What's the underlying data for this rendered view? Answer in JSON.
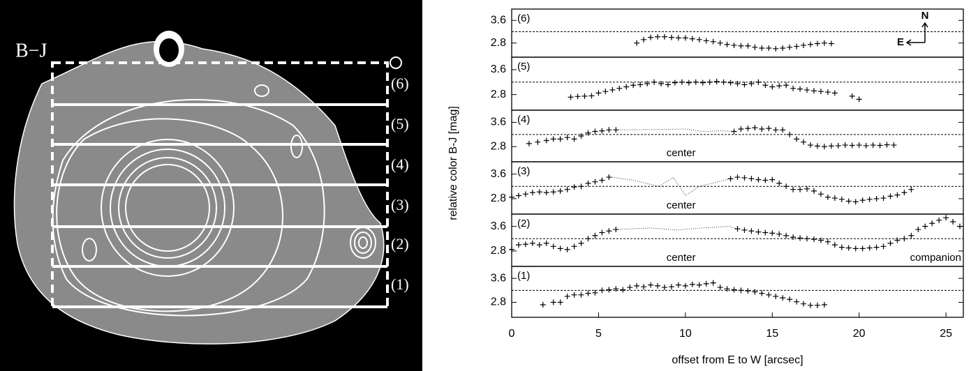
{
  "image": {
    "label": "B−J",
    "strips": [
      "(6)",
      "(5)",
      "(4)",
      "(3)",
      "(2)",
      "(1)"
    ]
  },
  "ylabel": "relative color B-J [mag]",
  "chart_data": [
    {
      "type": "scatter",
      "label": "(6)",
      "xlim": [
        0,
        26
      ],
      "ylim": [
        2.3,
        4.0
      ],
      "yticks": [
        3.6,
        2.8
      ],
      "reference_line": 3.2,
      "compass": [
        "N",
        "E"
      ],
      "x": [
        7.2,
        7.6,
        8,
        8.4,
        8.8,
        9.2,
        9.6,
        10,
        10.4,
        10.8,
        11.2,
        11.6,
        12,
        12.4,
        12.8,
        13.2,
        13.6,
        14,
        14.4,
        14.8,
        15.2,
        15.6,
        16,
        16.4,
        16.8,
        17.2,
        17.6,
        18,
        18.4
      ],
      "values": [
        2.8,
        2.92,
        3.0,
        3.02,
        3.02,
        3.0,
        2.98,
        2.98,
        2.95,
        2.92,
        2.88,
        2.85,
        2.8,
        2.75,
        2.72,
        2.7,
        2.7,
        2.65,
        2.62,
        2.62,
        2.6,
        2.62,
        2.65,
        2.68,
        2.72,
        2.75,
        2.78,
        2.8,
        2.78
      ]
    },
    {
      "type": "scatter",
      "label": "(5)",
      "xlim": [
        0,
        26
      ],
      "ylim": [
        2.3,
        4.0
      ],
      "yticks": [
        3.6,
        2.8
      ],
      "reference_line": 3.2,
      "x": [
        3.4,
        3.8,
        4.2,
        4.6,
        5,
        5.4,
        5.8,
        6.2,
        6.6,
        7,
        7.4,
        7.8,
        8.2,
        8.6,
        9,
        9.4,
        9.8,
        10.2,
        10.6,
        11,
        11.4,
        11.8,
        12.2,
        12.6,
        13,
        13.4,
        13.8,
        14.2,
        14.6,
        15,
        15.4,
        15.8,
        16.2,
        16.6,
        17,
        17.4,
        17.8,
        18.2,
        18.6,
        19.6,
        20
      ],
      "values": [
        2.72,
        2.74,
        2.75,
        2.76,
        2.85,
        2.9,
        2.95,
        3.0,
        3.05,
        3.1,
        3.12,
        3.15,
        3.2,
        3.15,
        3.12,
        3.18,
        3.2,
        3.18,
        3.2,
        3.18,
        3.2,
        3.22,
        3.2,
        3.18,
        3.15,
        3.12,
        3.15,
        3.2,
        3.1,
        3.05,
        3.08,
        3.1,
        3.0,
        2.98,
        2.95,
        2.92,
        2.9,
        2.88,
        2.85,
        2.75,
        2.65
      ]
    },
    {
      "type": "scatter",
      "label": "(4)",
      "xlim": [
        0,
        26
      ],
      "ylim": [
        2.3,
        4.0
      ],
      "yticks": [
        3.6,
        2.8
      ],
      "reference_line": 3.2,
      "annotations": [
        "center"
      ],
      "x": [
        1,
        1.5,
        2,
        2.4,
        2.8,
        3.2,
        3.6,
        4,
        4.4,
        4.8,
        5.2,
        5.6,
        6,
        12.8,
        13.2,
        13.6,
        14,
        14.4,
        14.8,
        15.2,
        15.6,
        16,
        16.4,
        16.8,
        17.2,
        17.6,
        18,
        18.4,
        18.8,
        19.2,
        19.6,
        20,
        20.4,
        20.8,
        21.2,
        21.6,
        22
      ],
      "values": [
        2.9,
        2.95,
        3.0,
        3.05,
        3.05,
        3.1,
        3.05,
        3.15,
        3.25,
        3.3,
        3.32,
        3.35,
        3.35,
        3.3,
        3.38,
        3.4,
        3.42,
        3.38,
        3.4,
        3.35,
        3.35,
        3.2,
        3.05,
        2.95,
        2.85,
        2.82,
        2.8,
        2.82,
        2.83,
        2.85,
        2.84,
        2.85,
        2.83,
        2.85,
        2.84,
        2.86,
        2.85
      ],
      "trace": {
        "x": [
          6,
          8,
          10,
          11,
          12,
          12.8
        ],
        "values": [
          3.35,
          3.36,
          3.38,
          3.3,
          3.32,
          3.3
        ]
      }
    },
    {
      "type": "scatter",
      "label": "(3)",
      "xlim": [
        0,
        26
      ],
      "ylim": [
        2.3,
        4.0
      ],
      "yticks": [
        3.6,
        2.8
      ],
      "reference_line": 3.2,
      "annotations": [
        "center"
      ],
      "x": [
        0,
        0.4,
        0.8,
        1.2,
        1.6,
        2,
        2.4,
        2.8,
        3.2,
        3.6,
        4,
        4.4,
        4.8,
        5.2,
        5.6,
        12.6,
        13,
        13.4,
        13.8,
        14.2,
        14.6,
        15,
        15.4,
        15.8,
        16.2,
        16.6,
        17,
        17.4,
        17.8,
        18.2,
        18.6,
        19,
        19.4,
        19.8,
        20.2,
        20.6,
        21,
        21.4,
        21.8,
        22.2,
        22.6,
        23
      ],
      "values": [
        2.85,
        2.9,
        2.95,
        3.0,
        3.02,
        3.0,
        3.02,
        3.05,
        3.1,
        3.18,
        3.2,
        3.3,
        3.35,
        3.4,
        3.5,
        3.45,
        3.5,
        3.48,
        3.45,
        3.42,
        3.4,
        3.42,
        3.3,
        3.2,
        3.1,
        3.1,
        3.12,
        3.05,
        2.95,
        2.85,
        2.82,
        2.78,
        2.72,
        2.7,
        2.75,
        2.78,
        2.8,
        2.82,
        2.88,
        2.92,
        3.0,
        3.1
      ],
      "trace": {
        "x": [
          5.8,
          7,
          8.5,
          9.3,
          10,
          10.8,
          12.6
        ],
        "values": [
          3.5,
          3.4,
          3.2,
          3.5,
          2.9,
          3.2,
          3.45
        ]
      }
    },
    {
      "type": "scatter",
      "label": "(2)",
      "xlim": [
        0,
        26
      ],
      "ylim": [
        2.3,
        4.0
      ],
      "yticks": [
        3.6,
        2.8
      ],
      "reference_line": 3.2,
      "annotations": [
        "center",
        "companion"
      ],
      "x": [
        0,
        0.4,
        0.8,
        1.2,
        1.6,
        2,
        2.4,
        2.8,
        3.2,
        3.6,
        4,
        4.4,
        4.8,
        5.2,
        5.6,
        6,
        13,
        13.4,
        13.8,
        14.2,
        14.6,
        15,
        15.4,
        15.8,
        16.2,
        16.6,
        17,
        17.4,
        17.8,
        18.2,
        18.6,
        19,
        19.4,
        19.8,
        20.2,
        20.6,
        21,
        21.4,
        21.8,
        22.2,
        22.6,
        23,
        23.4,
        23.8,
        24.2,
        24.6,
        25,
        25.4,
        25.8
      ],
      "values": [
        2.85,
        3.0,
        3.02,
        3.05,
        3.0,
        3.05,
        2.95,
        2.88,
        2.85,
        2.95,
        3.05,
        3.2,
        3.3,
        3.4,
        3.45,
        3.5,
        3.52,
        3.48,
        3.45,
        3.42,
        3.4,
        3.38,
        3.35,
        3.3,
        3.25,
        3.22,
        3.2,
        3.18,
        3.15,
        3.1,
        3.0,
        2.92,
        2.9,
        2.88,
        2.88,
        2.9,
        2.92,
        2.95,
        3.05,
        3.15,
        3.2,
        3.3,
        3.5,
        3.6,
        3.7,
        3.8,
        3.88,
        3.75,
        3.6
      ],
      "trace": {
        "x": [
          6,
          8,
          9.5,
          11,
          12.5,
          13
        ],
        "values": [
          3.5,
          3.55,
          3.48,
          3.55,
          3.6,
          3.52
        ]
      }
    },
    {
      "type": "scatter",
      "label": "(1)",
      "xlim": [
        0,
        26
      ],
      "ylim": [
        2.3,
        4.0
      ],
      "yticks": [
        3.6,
        2.8
      ],
      "reference_line": 3.2,
      "xlabel": "offset from E to W [arcsec]",
      "xticks": [
        0,
        5,
        10,
        15,
        20,
        25
      ],
      "x": [
        1.8,
        2.4,
        2.8,
        3.2,
        3.6,
        4,
        4.4,
        4.8,
        5.2,
        5.6,
        6,
        6.4,
        6.8,
        7.2,
        7.6,
        8,
        8.4,
        8.8,
        9.2,
        9.6,
        10,
        10.4,
        10.8,
        11.2,
        11.6,
        12,
        12.4,
        12.8,
        13.2,
        13.6,
        14,
        14.4,
        14.8,
        15.2,
        15.6,
        16,
        16.4,
        16.8,
        17.2,
        17.6,
        18
      ],
      "values": [
        2.72,
        2.8,
        2.8,
        3.0,
        3.05,
        3.05,
        3.1,
        3.12,
        3.2,
        3.22,
        3.25,
        3.22,
        3.3,
        3.35,
        3.32,
        3.38,
        3.35,
        3.3,
        3.32,
        3.38,
        3.35,
        3.4,
        3.38,
        3.42,
        3.45,
        3.3,
        3.25,
        3.22,
        3.2,
        3.18,
        3.15,
        3.1,
        3.05,
        3.0,
        2.95,
        2.9,
        2.82,
        2.75,
        2.7,
        2.7,
        2.72
      ]
    }
  ]
}
